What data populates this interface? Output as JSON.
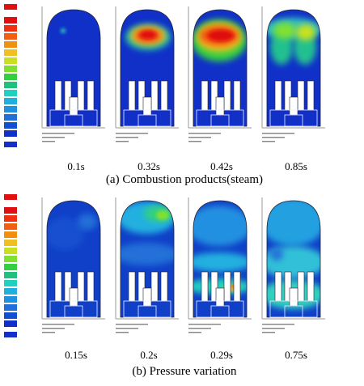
{
  "figure_a": {
    "times": [
      "0.1s",
      "0.32s",
      "0.42s",
      "0.85s"
    ],
    "caption": "(a)  Combustion  products(steam)"
  },
  "figure_b": {
    "times": [
      "0.15s",
      "0.2s",
      "0.29s",
      "0.75s"
    ],
    "caption": "(b)  Pressure  variation"
  }
}
